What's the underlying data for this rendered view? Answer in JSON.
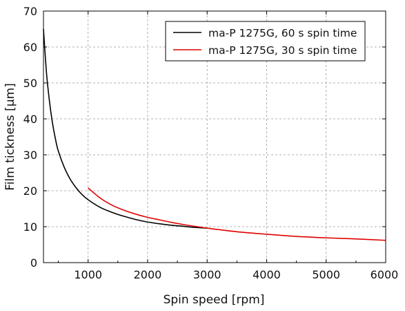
{
  "chart_data": {
    "type": "line",
    "title": "",
    "xlabel": "Spin speed [rpm]",
    "ylabel": "Film tickness [µm]",
    "xlim": [
      250,
      6000
    ],
    "ylim": [
      0,
      70
    ],
    "xticks": [
      1000,
      2000,
      3000,
      4000,
      5000,
      6000
    ],
    "yticks": [
      0,
      10,
      20,
      30,
      40,
      50,
      60,
      70
    ],
    "grid": true,
    "legend_position": "top-right",
    "series": [
      {
        "name": "ma-P 1275G, 60 s spin time",
        "color": "#000000",
        "x": [
          250,
          300,
          350,
          400,
          450,
          500,
          600,
          700,
          800,
          900,
          1000,
          1200,
          1400,
          1600,
          1800,
          2000,
          2200,
          2400,
          2600,
          2800,
          3000
        ],
        "y": [
          65,
          53,
          45,
          39,
          34.5,
          31,
          26.5,
          23.2,
          20.8,
          18.9,
          17.5,
          15.4,
          14.0,
          12.9,
          12.0,
          11.3,
          10.8,
          10.4,
          10.1,
          9.8,
          9.6
        ]
      },
      {
        "name": "ma-P 1275G, 30 s spin time",
        "color": "#e00000",
        "x": [
          1000,
          1200,
          1400,
          1600,
          1800,
          2000,
          2200,
          2400,
          2600,
          3000,
          3500,
          4000,
          4500,
          5000,
          5500,
          6000
        ],
        "y": [
          20.8,
          18.0,
          16.0,
          14.6,
          13.5,
          12.6,
          11.9,
          11.2,
          10.6,
          9.6,
          8.6,
          7.9,
          7.3,
          6.9,
          6.6,
          6.2
        ]
      }
    ]
  }
}
